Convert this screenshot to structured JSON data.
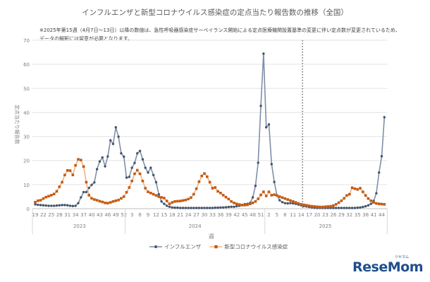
{
  "chart_data": {
    "type": "line",
    "title": "インフルエンザと新型コロナウイルス感染症の定点当たり報告数の推移（全国）",
    "notes": [
      "※2025年第15週（4月7日～13日）以降の数値は、急性呼吸器感染症サーベイランス開始による定点医療機関設置基準の変更に伴い定点数が変更されているため、",
      "データの解釈には留意が必要となります。"
    ],
    "xlabel": "週",
    "ylabel": "定点当たり報告数",
    "ylim": [
      0,
      70
    ],
    "yticks": [
      0,
      10,
      20,
      30,
      40,
      50,
      60,
      70
    ],
    "grid": true,
    "legend": "bottom",
    "periods": [
      {
        "year": "2023",
        "from_week": 19,
        "to_week": 52
      },
      {
        "year": "2024",
        "from_week": 1,
        "to_week": 52
      },
      {
        "year": "2025",
        "from_week": 1,
        "to_week": 45
      }
    ],
    "xtick_every_weeks": 3,
    "reference_line": {
      "year": "2025",
      "between_weeks": [
        14,
        15
      ],
      "style": "dashed"
    },
    "series": [
      {
        "name": "インフルエンザ",
        "color": "#44546a",
        "line_color": "#7f8fa9",
        "marker": "circle",
        "values": [
          1.8,
          1.6,
          1.5,
          1.4,
          1.3,
          1.2,
          1.2,
          1.2,
          1.3,
          1.4,
          1.5,
          1.5,
          1.4,
          1.2,
          1.1,
          1.2,
          2.3,
          4.7,
          6.9,
          6.9,
          8.6,
          9.9,
          10.9,
          16.4,
          19.6,
          21.3,
          17.6,
          21.7,
          28.4,
          26.9,
          33.8,
          29.9,
          23.0,
          21.6,
          12.9,
          13.2,
          17.0,
          19.0,
          23.0,
          24.0,
          20.5,
          17.0,
          15.0,
          17.0,
          14.0,
          11.0,
          6.0,
          3.0,
          2.0,
          1.2,
          0.8,
          0.5,
          0.4,
          0.4,
          0.3,
          0.3,
          0.3,
          0.3,
          0.3,
          0.3,
          0.3,
          0.3,
          0.3,
          0.3,
          0.3,
          0.3,
          0.3,
          0.4,
          0.4,
          0.5,
          0.5,
          0.6,
          0.7,
          0.8,
          0.8,
          1.0,
          1.2,
          1.5,
          1.9,
          2.0,
          2.4,
          4.7,
          9.5,
          19.1,
          42.7,
          64.4,
          33.8,
          35.0,
          18.5,
          11.1,
          5.5,
          3.5,
          2.7,
          2.3,
          2.2,
          2.3,
          2.2,
          2.0,
          1.7,
          1.4,
          1.1,
          0.9,
          0.7,
          0.5,
          0.4,
          0.3,
          0.3,
          0.3,
          0.3,
          0.3,
          0.3,
          0.3,
          0.3,
          0.3,
          0.3,
          0.3,
          0.3,
          0.3,
          0.3,
          0.3,
          0.4,
          0.5,
          0.7,
          1.0,
          1.4,
          2.0,
          3.2,
          6.4,
          15.0,
          21.8,
          38.0
        ]
      },
      {
        "name": "新型コロナウイルス感染症",
        "color": "#c55a11",
        "line_color": "#f4b183",
        "marker": "square",
        "values": [
          2.7,
          3.3,
          3.5,
          4.2,
          4.8,
          5.2,
          5.6,
          6.1,
          7.2,
          9.1,
          11.0,
          14.0,
          15.9,
          15.8,
          14.0,
          18.0,
          20.5,
          20.2,
          17.5,
          11.0,
          5.6,
          4.3,
          3.8,
          3.5,
          3.1,
          2.8,
          2.4,
          2.3,
          2.6,
          3.0,
          3.3,
          3.6,
          4.3,
          5.0,
          6.8,
          8.8,
          11.5,
          14.5,
          16.0,
          14.5,
          11.5,
          8.5,
          7.0,
          6.5,
          6.0,
          5.5,
          5.0,
          4.7,
          4.4,
          3.2,
          2.0,
          2.6,
          3.0,
          3.1,
          3.2,
          3.4,
          3.6,
          4.0,
          4.6,
          6.0,
          8.3,
          11.2,
          13.6,
          14.6,
          13.3,
          11.0,
          8.5,
          8.8,
          7.2,
          6.5,
          5.6,
          4.8,
          4.0,
          3.0,
          2.4,
          2.0,
          1.7,
          1.5,
          1.5,
          1.6,
          2.0,
          2.4,
          3.0,
          4.1,
          5.7,
          7.0,
          5.3,
          7.0,
          5.6,
          5.8,
          5.5,
          5.0,
          4.6,
          4.2,
          3.8,
          3.4,
          3.0,
          2.6,
          2.2,
          1.8,
          1.6,
          1.4,
          1.2,
          1.0,
          0.9,
          0.8,
          0.7,
          0.7,
          0.8,
          0.9,
          1.0,
          1.3,
          1.8,
          2.5,
          3.3,
          4.3,
          5.5,
          6.0,
          8.7,
          8.3,
          8.0,
          8.5,
          7.0,
          5.5,
          4.2,
          3.3,
          2.6,
          2.2,
          2.0,
          1.9,
          1.8
        ]
      }
    ]
  },
  "logo": {
    "sub": "リセマム",
    "main": "ReseMom"
  }
}
